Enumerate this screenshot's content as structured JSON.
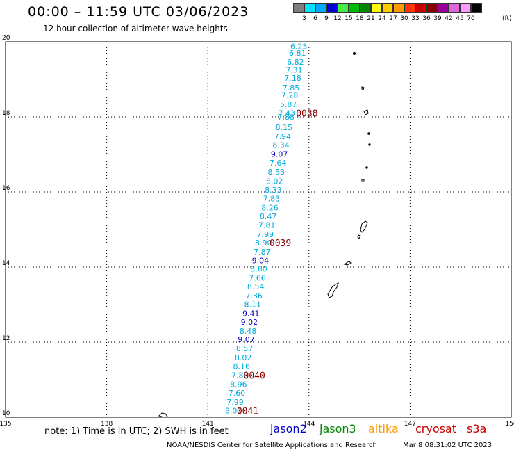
{
  "header": {
    "title": "00:00 – 11:59 UTC 03/06/2023",
    "subtitle": "12 hour collection of altimeter wave heights"
  },
  "legend": {
    "unit": "(ft)",
    "labels": [
      "3",
      "6",
      "9",
      "12",
      "15",
      "18",
      "21",
      "24",
      "27",
      "30",
      "33",
      "36",
      "39",
      "42",
      "45",
      "70"
    ],
    "colors": [
      "#7f7f7f",
      "#00e5ff",
      "#00aaff",
      "#0000dd",
      "#44ee44",
      "#00bb00",
      "#008800",
      "#ffff00",
      "#ffcc00",
      "#ff9900",
      "#ff3300",
      "#cc0000",
      "#880000",
      "#990099",
      "#dd66dd",
      "#ff99ff",
      "#000000"
    ]
  },
  "axes": {
    "x_ticks": [
      "135",
      "138",
      "141",
      "144",
      "147",
      "150"
    ],
    "y_ticks": [
      "20",
      "18",
      "16",
      "14",
      "12",
      "10"
    ]
  },
  "track": {
    "points": [
      {
        "lat": 19.88,
        "lon": 143.7,
        "text": "6.25",
        "color": "#00aadd"
      },
      {
        "lat": 19.7,
        "lon": 143.66,
        "text": "6.81",
        "color": "#00aadd"
      },
      {
        "lat": 19.46,
        "lon": 143.6,
        "text": "6.82",
        "color": "#00aadd"
      },
      {
        "lat": 19.25,
        "lon": 143.56,
        "text": "7.31",
        "color": "#00aadd"
      },
      {
        "lat": 19.04,
        "lon": 143.52,
        "text": "7.18",
        "color": "#00aadd"
      },
      {
        "lat": 18.78,
        "lon": 143.47,
        "text": "7.85",
        "color": "#00aadd"
      },
      {
        "lat": 18.58,
        "lon": 143.43,
        "text": "7.28",
        "color": "#00aadd"
      },
      {
        "lat": 18.33,
        "lon": 143.39,
        "text": "5.87",
        "color": "#00ccee"
      },
      {
        "lat": 18.1,
        "lon": 143.34,
        "text": "7.43",
        "color": "#00aadd"
      },
      {
        "lat": 18.0,
        "lon": 143.32,
        "text": "7.88",
        "color": "#00aadd"
      },
      {
        "lat": 17.72,
        "lon": 143.26,
        "text": "8.15",
        "color": "#00aadd"
      },
      {
        "lat": 17.48,
        "lon": 143.22,
        "text": "7.94",
        "color": "#00aadd"
      },
      {
        "lat": 17.25,
        "lon": 143.17,
        "text": "8.34",
        "color": "#00aadd"
      },
      {
        "lat": 17.01,
        "lon": 143.12,
        "text": "9.07",
        "color": "#0000cc"
      },
      {
        "lat": 16.78,
        "lon": 143.08,
        "text": "7.64",
        "color": "#00aadd"
      },
      {
        "lat": 16.54,
        "lon": 143.03,
        "text": "8.53",
        "color": "#00aadd"
      },
      {
        "lat": 16.29,
        "lon": 142.98,
        "text": "8.02",
        "color": "#00aadd"
      },
      {
        "lat": 16.06,
        "lon": 142.94,
        "text": "8.33",
        "color": "#00aadd"
      },
      {
        "lat": 15.82,
        "lon": 142.89,
        "text": "7.83",
        "color": "#00aadd"
      },
      {
        "lat": 15.58,
        "lon": 142.84,
        "text": "8.26",
        "color": "#00aadd"
      },
      {
        "lat": 15.35,
        "lon": 142.79,
        "text": "8.47",
        "color": "#00aadd"
      },
      {
        "lat": 15.12,
        "lon": 142.75,
        "text": "7.81",
        "color": "#00aadd"
      },
      {
        "lat": 14.87,
        "lon": 142.7,
        "text": "7.99",
        "color": "#00aadd"
      },
      {
        "lat": 14.65,
        "lon": 142.65,
        "text": "8.90",
        "color": "#00aadd"
      },
      {
        "lat": 14.41,
        "lon": 142.61,
        "text": "7.87",
        "color": "#00aadd"
      },
      {
        "lat": 14.18,
        "lon": 142.56,
        "text": "9.04",
        "color": "#0000cc"
      },
      {
        "lat": 13.95,
        "lon": 142.51,
        "text": "8.60",
        "color": "#00ccee"
      },
      {
        "lat": 13.71,
        "lon": 142.47,
        "text": "7.66",
        "color": "#00aadd"
      },
      {
        "lat": 13.48,
        "lon": 142.42,
        "text": "8.54",
        "color": "#00aadd"
      },
      {
        "lat": 13.24,
        "lon": 142.37,
        "text": "7.36",
        "color": "#00aadd"
      },
      {
        "lat": 13.01,
        "lon": 142.33,
        "text": "8.11",
        "color": "#00aadd"
      },
      {
        "lat": 12.77,
        "lon": 142.28,
        "text": "9.41",
        "color": "#0000cc"
      },
      {
        "lat": 12.54,
        "lon": 142.23,
        "text": "9.02",
        "color": "#0000cc"
      },
      {
        "lat": 12.3,
        "lon": 142.19,
        "text": "8.48",
        "color": "#00aadd"
      },
      {
        "lat": 12.07,
        "lon": 142.14,
        "text": "9.07",
        "color": "#0000cc"
      },
      {
        "lat": 11.83,
        "lon": 142.09,
        "text": "8.57",
        "color": "#00aadd"
      },
      {
        "lat": 11.59,
        "lon": 142.05,
        "text": "8.02",
        "color": "#00aadd"
      },
      {
        "lat": 11.36,
        "lon": 142.0,
        "text": "8.16",
        "color": "#00aadd"
      },
      {
        "lat": 11.12,
        "lon": 141.95,
        "text": "7.83",
        "color": "#00aadd"
      },
      {
        "lat": 10.88,
        "lon": 141.91,
        "text": "8.96",
        "color": "#00aadd"
      },
      {
        "lat": 10.65,
        "lon": 141.86,
        "text": "7.60",
        "color": "#00aadd"
      },
      {
        "lat": 10.41,
        "lon": 141.81,
        "text": "7.99",
        "color": "#00aadd"
      },
      {
        "lat": 10.18,
        "lon": 141.76,
        "text": "8.01",
        "color": "#00aadd"
      }
    ],
    "times": [
      {
        "lat": 18.1,
        "lon": 143.94,
        "text": "0038"
      },
      {
        "lat": 14.65,
        "lon": 143.15,
        "text": "0039"
      },
      {
        "lat": 11.12,
        "lon": 142.38,
        "text": "0040"
      },
      {
        "lat": 10.18,
        "lon": 142.18,
        "text": "0041"
      }
    ],
    "time_color": "#880000"
  },
  "notes": {
    "note": "note:  1) Time is in UTC; 2) SWH is in feet",
    "satellites": [
      {
        "name": "jason2",
        "color": "#0000cc"
      },
      {
        "name": "jason3",
        "color": "#008800"
      },
      {
        "name": "altika",
        "color": "#ff9900"
      },
      {
        "name": "cryosat",
        "color": "#cc0000"
      },
      {
        "name": "s3a",
        "color": "#cc0000"
      }
    ],
    "footer": "NOAA/NESDIS Center for Satellite Applications and Research",
    "date": "Mar  8 08:31:02 UTC 2023"
  }
}
